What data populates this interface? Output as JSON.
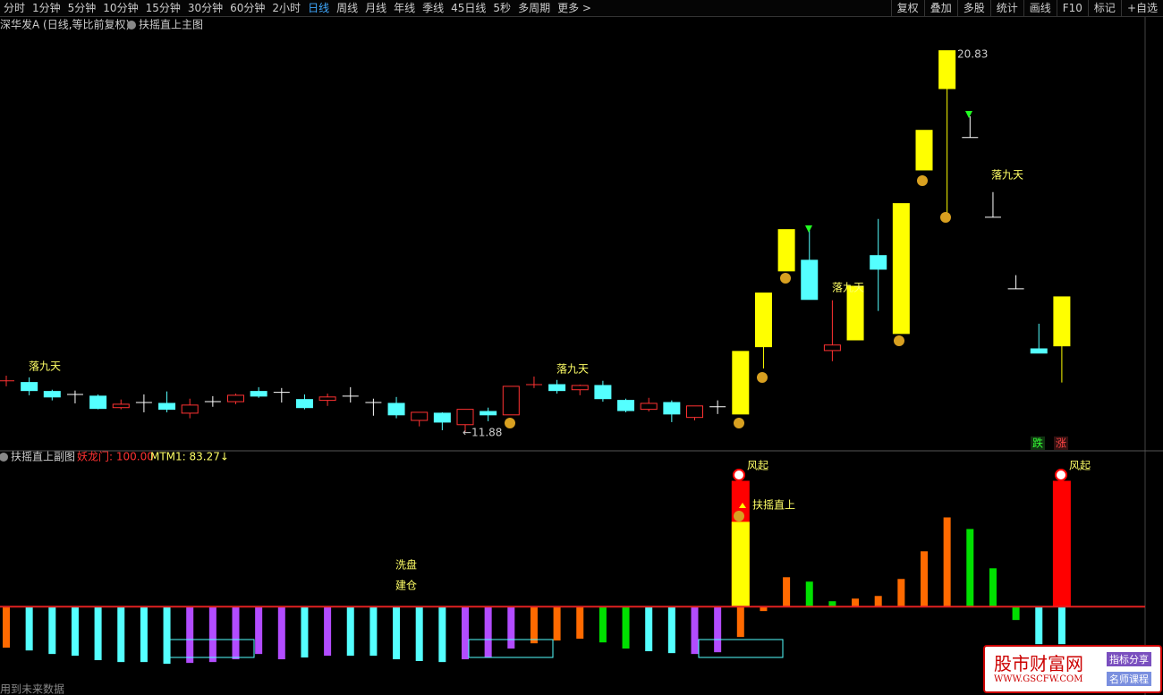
{
  "toolbar": {
    "left": [
      "分时",
      "1分钟",
      "5分钟",
      "10分钟",
      "15分钟",
      "30分钟",
      "60分钟",
      "2小时",
      "日线",
      "周线",
      "月线",
      "年线",
      "季线",
      "45日线",
      "5秒",
      "多周期",
      "更多 >"
    ],
    "right": [
      "复权",
      "叠加",
      "多股",
      "统计",
      "画线",
      "F10",
      "标记",
      "+自选"
    ]
  },
  "header": {
    "security": "深华发A (日线,等比前复权)",
    "indicator": "扶摇直上主图"
  },
  "sub_header": {
    "indicator": "扶摇直上副图",
    "legend": [
      "妖龙门: 100.00",
      "MTM1: 83.27↓"
    ]
  },
  "chart_data": [
    {
      "type": "candlestick",
      "ylim": [
        11.52,
        21.18
      ],
      "open": [
        13.08,
        13.04,
        12.83,
        12.76,
        12.72,
        12.45,
        12.57,
        12.55,
        12.32,
        12.59,
        12.59,
        12.83,
        12.81,
        12.64,
        12.62,
        12.72,
        12.57,
        12.55,
        12.15,
        12.32,
        12.05,
        12.36,
        12.28,
        12.99,
        12.99,
        12.87,
        12.97,
        12.62,
        12.41,
        12.57,
        12.22,
        12.47,
        12.3,
        13.88,
        15.66,
        15.91,
        13.79,
        14.04,
        16.02,
        14.19,
        18.03,
        19.94,
        18.79,
        16.92,
        15.24,
        13.83,
        13.9
      ],
      "high": [
        13.2,
        13.16,
        12.87,
        12.85,
        12.76,
        12.64,
        12.76,
        12.83,
        12.66,
        12.72,
        12.78,
        12.93,
        12.91,
        12.76,
        12.78,
        12.93,
        12.66,
        12.7,
        12.34,
        12.34,
        12.41,
        12.45,
        12.95,
        13.18,
        13.1,
        12.99,
        13.08,
        12.66,
        12.68,
        12.62,
        12.49,
        12.62,
        13.77,
        15.14,
        16.63,
        16.61,
        14.97,
        15.3,
        16.88,
        17.24,
        18.96,
        20.83,
        19.29,
        17.51,
        15.56,
        14.42,
        15.05
      ],
      "low": [
        12.95,
        12.74,
        12.62,
        12.55,
        12.41,
        12.41,
        12.34,
        12.34,
        12.2,
        12.47,
        12.53,
        12.68,
        12.57,
        12.41,
        12.49,
        12.57,
        12.26,
        12.2,
        12.01,
        11.92,
        11.88,
        12.13,
        12.28,
        12.91,
        12.78,
        12.74,
        12.59,
        12.34,
        12.36,
        12.11,
        12.15,
        12.3,
        12.3,
        13.37,
        15.66,
        14.99,
        13.54,
        14.04,
        14.72,
        14.19,
        18.03,
        16.98,
        18.79,
        16.92,
        15.24,
        13.73,
        13.04
      ],
      "close": [
        13.08,
        12.85,
        12.7,
        12.76,
        12.43,
        12.53,
        12.57,
        12.41,
        12.51,
        12.59,
        12.74,
        12.72,
        12.81,
        12.45,
        12.7,
        12.72,
        12.57,
        12.28,
        12.34,
        12.11,
        12.41,
        12.28,
        12.95,
        12.99,
        12.85,
        12.97,
        12.66,
        12.38,
        12.55,
        12.3,
        12.49,
        12.47,
        13.77,
        15.14,
        16.63,
        14.99,
        13.92,
        15.3,
        15.7,
        17.24,
        18.96,
        20.83,
        18.79,
        16.92,
        15.24,
        13.73,
        15.05
      ],
      "candle_colors": [
        "#ff3232",
        "#54ffff",
        "#54ffff",
        "#ffffff",
        "#54ffff",
        "#ff3232",
        "#ffffff",
        "#54ffff",
        "#ff3232",
        "#ffffff",
        "#ff3232",
        "#54ffff",
        "#ffffff",
        "#54ffff",
        "#ff3232",
        "#ffffff",
        "#ffffff",
        "#54ffff",
        "#ff3232",
        "#54ffff",
        "#ff3232",
        "#54ffff",
        "#ff3232",
        "#ff3232",
        "#54ffff",
        "#ff3232",
        "#54ffff",
        "#54ffff",
        "#ff3232",
        "#54ffff",
        "#ff3232",
        "#ffffff",
        "#ffff00",
        "#ffff00",
        "#ffff00",
        "#54ffff",
        "#ff3232",
        "#ffff00",
        "#54ffff",
        "#ffff00",
        "#ffff00",
        "#ffff00",
        "#ffffff",
        "#ffffff",
        "#ffffff",
        "#54ffff",
        "#ffff00"
      ],
      "annotations": [
        "落九天",
        "落九天",
        "落九天",
        "落九天",
        "20.83",
        "←11.88",
        "跌",
        "涨"
      ]
    },
    {
      "type": "bar",
      "ylim": [
        -51,
        116
      ],
      "values": [
        -32.6,
        -34.8,
        -37.6,
        -39.0,
        -42.5,
        -44.0,
        -44.0,
        -45.4,
        -44.7,
        -44.0,
        -41.8,
        -37.6,
        -41.8,
        -40.4,
        -39.0,
        -39.0,
        -39.0,
        -41.8,
        -43.2,
        -44.0,
        -41.8,
        -40.4,
        -33.3,
        -29.1,
        -26.9,
        -25.5,
        -28.4,
        -33.3,
        -35.4,
        -36.9,
        -37.6,
        -36.2,
        -24.1,
        -3.5,
        23.4,
        19.9,
        4.3,
        6.4,
        8.5,
        22.0,
        44.0,
        70.9,
        61.7,
        30.5,
        -10.6,
        -29.8,
        -29.8
      ],
      "colors": [
        "#ff6a00",
        "#54ffff",
        "#54ffff",
        "#54ffff",
        "#54ffff",
        "#54ffff",
        "#54ffff",
        "#54ffff",
        "#b24cff",
        "#b24cff",
        "#b24cff",
        "#b24cff",
        "#b24cff",
        "#54ffff",
        "#b24cff",
        "#54ffff",
        "#54ffff",
        "#54ffff",
        "#54ffff",
        "#54ffff",
        "#b24cff",
        "#b24cff",
        "#b24cff",
        "#ff6a00",
        "#ff6a00",
        "#ff6a00",
        "#00e000",
        "#00e000",
        "#54ffff",
        "#54ffff",
        "#b24cff",
        "#b24cff",
        "#ff6a00",
        "#ff6a00",
        "#ff6a00",
        "#00e000",
        "#00e000",
        "#ff6a00",
        "#ff6a00",
        "#ff6a00",
        "#ff6a00",
        "#ff6a00",
        "#00e000",
        "#00e000",
        "#00e000",
        "#54ffff",
        "#54ffff"
      ],
      "series": [
        {
          "color": "#ff0000",
          "values": [
            null,
            null,
            null,
            null,
            null,
            null,
            null,
            null,
            null,
            null,
            null,
            null,
            null,
            null,
            null,
            null,
            null,
            null,
            null,
            null,
            null,
            null,
            null,
            null,
            null,
            null,
            null,
            null,
            null,
            null,
            null,
            null,
            100,
            null,
            null,
            null,
            null,
            null,
            null,
            null,
            null,
            null,
            null,
            null,
            null,
            null,
            100
          ]
        },
        {
          "color": "#ffff00",
          "values": [
            null,
            null,
            null,
            null,
            null,
            null,
            null,
            null,
            null,
            null,
            null,
            null,
            null,
            null,
            null,
            null,
            null,
            null,
            null,
            null,
            null,
            null,
            null,
            null,
            null,
            null,
            null,
            null,
            null,
            null,
            null,
            null,
            67.4,
            null,
            null,
            null,
            null,
            null,
            null,
            null,
            null,
            null,
            null,
            null,
            null,
            null,
            null
          ]
        }
      ],
      "annotations": [
        "洗盘",
        "建仓",
        "扶摇直上",
        "风起",
        "风起"
      ]
    }
  ],
  "footer": "用到未来数据",
  "watermark": {
    "name": "股市财富网",
    "url": "WWW.GSCFW.COM",
    "tags": [
      "指标分享",
      "名师课程"
    ]
  }
}
